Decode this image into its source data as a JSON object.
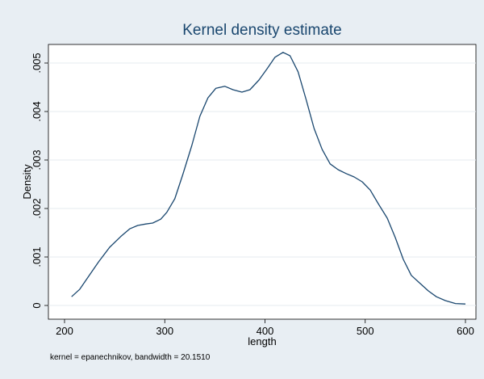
{
  "chart_data": {
    "type": "line",
    "title": "Kernel density estimate",
    "xlabel": "length",
    "ylabel": "Density",
    "note": "kernel = epanechnikov, bandwidth = 20.1510",
    "xlim": [
      200,
      600
    ],
    "ylim": [
      0,
      0.0052
    ],
    "x_ticks": [
      200,
      300,
      400,
      500,
      600
    ],
    "x_tick_labels": [
      "200",
      "300",
      "400",
      "500",
      "600"
    ],
    "y_ticks": [
      0,
      0.001,
      0.002,
      0.003,
      0.004,
      0.005
    ],
    "y_tick_labels": [
      "0",
      ".001",
      ".002",
      ".003",
      ".004",
      ".005"
    ],
    "grid": true,
    "series": [
      {
        "color": "#1a476f",
        "x": [
          207,
          215,
          224,
          234,
          245,
          256,
          265,
          273,
          281,
          288,
          296,
          302,
          310,
          318,
          327,
          335,
          343,
          351,
          360,
          368,
          377,
          385,
          394,
          402,
          410,
          418,
          425,
          433,
          441,
          449,
          457,
          465,
          473,
          481,
          489,
          497,
          505,
          513,
          522,
          530,
          538,
          546,
          555,
          563,
          571,
          580,
          590,
          600
        ],
        "y": [
          0.00018,
          0.00033,
          0.0006,
          0.0009,
          0.0012,
          0.00142,
          0.00158,
          0.00165,
          0.00168,
          0.0017,
          0.00178,
          0.00192,
          0.0022,
          0.0027,
          0.0033,
          0.0039,
          0.00428,
          0.00448,
          0.00452,
          0.00445,
          0.0044,
          0.00445,
          0.00465,
          0.00488,
          0.00512,
          0.00522,
          0.00515,
          0.00482,
          0.00425,
          0.00365,
          0.00322,
          0.00292,
          0.0028,
          0.00272,
          0.00265,
          0.00255,
          0.00238,
          0.0021,
          0.0018,
          0.0014,
          0.00095,
          0.00062,
          0.00045,
          0.0003,
          0.00018,
          0.0001,
          4e-05,
          3e-05
        ]
      }
    ]
  }
}
